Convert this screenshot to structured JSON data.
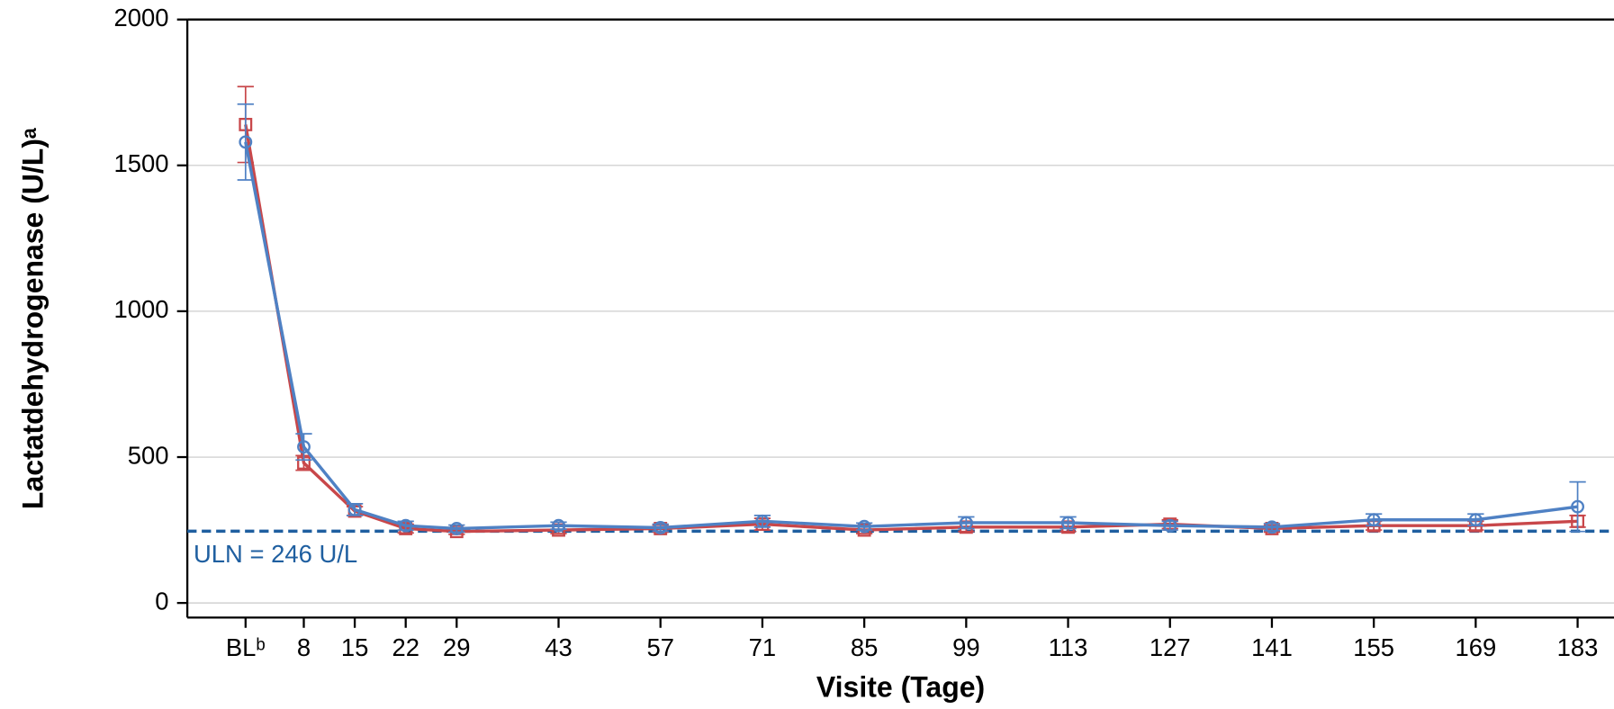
{
  "chart_data": {
    "type": "line",
    "x_label": "Visite (Tage)",
    "y_label": "Lactatdehydrogenase (U/L)ᵃ",
    "x": [
      0,
      8,
      15,
      22,
      29,
      43,
      57,
      71,
      85,
      99,
      113,
      127,
      141,
      155,
      169,
      183
    ],
    "series": [
      {
        "color": "#c8474a",
        "marker": "square",
        "values": [
          1640,
          480,
          315,
          255,
          245,
          250,
          255,
          270,
          250,
          260,
          260,
          270,
          255,
          265,
          265,
          280
        ],
        "errors": [
          130,
          25,
          15,
          15,
          10,
          12,
          12,
          20,
          12,
          15,
          15,
          15,
          12,
          15,
          15,
          20
        ]
      },
      {
        "color": "#4f81c4",
        "marker": "circle",
        "values": [
          1580,
          535,
          320,
          265,
          255,
          265,
          258,
          280,
          262,
          275,
          275,
          265,
          260,
          285,
          285,
          330
        ],
        "errors": [
          130,
          45,
          20,
          15,
          12,
          12,
          12,
          20,
          12,
          20,
          20,
          15,
          12,
          20,
          20,
          85
        ]
      }
    ],
    "xlim": [
      -8,
      188
    ],
    "xticks": [
      {
        "value": 0,
        "label": "BLᵇ"
      },
      8,
      15,
      22,
      29,
      43,
      57,
      71,
      85,
      99,
      113,
      127,
      141,
      155,
      169,
      183
    ],
    "ylim": [
      -50,
      2000
    ],
    "yticks": [
      0,
      500,
      1000,
      1500,
      2000
    ],
    "grid": true,
    "reference_line": {
      "value": 246,
      "label": "ULN = 246 U/L",
      "color": "#1f5fa0"
    }
  }
}
